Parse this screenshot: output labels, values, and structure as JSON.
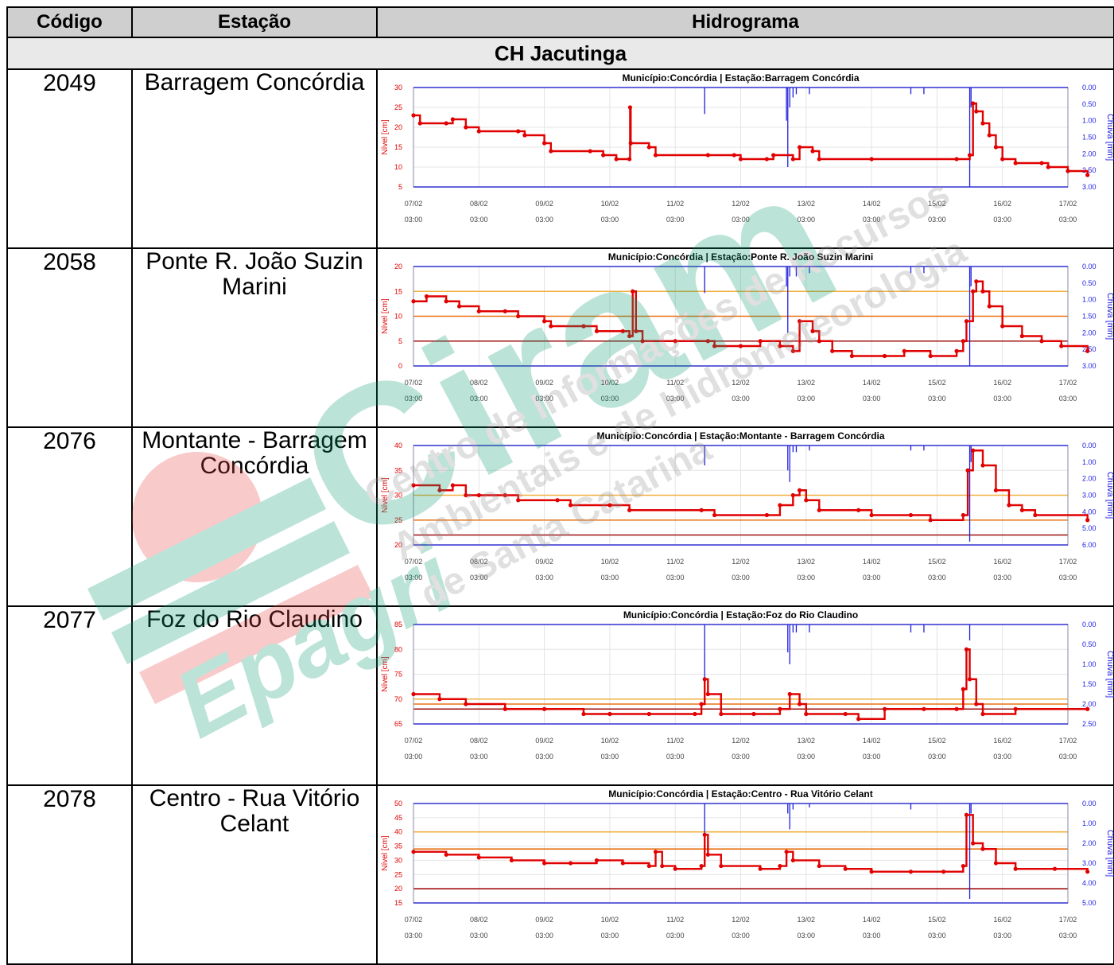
{
  "table": {
    "headers": [
      "Código",
      "Estação",
      "Hidrograma"
    ],
    "group_title": "CH Jacutinga",
    "rows": [
      {
        "code": "2049",
        "station": "Barragem Concórdia"
      },
      {
        "code": "2058",
        "station": "Ponte R. João Suzin Marini"
      },
      {
        "code": "2076",
        "station": "Montante - Barragem Concórdia"
      },
      {
        "code": "2077",
        "station": "Foz do Rio Claudino"
      },
      {
        "code": "2078",
        "station": "Centro - Rua Vitório Celant"
      }
    ]
  },
  "watermark": {
    "logo_text": "Epagri",
    "big_text": "Ciram",
    "line1": "Centro de Informações de Recursos",
    "line2": "Ambientais e de Hidrometeorologia",
    "line3": "de Santa Catarina"
  },
  "colors": {
    "level_series": "#e00000",
    "rain_series": "#2020e0",
    "threshold_light": "#f0b040",
    "threshold_mid": "#e87010",
    "threshold_dark": "#a01010",
    "watermark_green": "#0f9a72",
    "watermark_red": "#e64040"
  },
  "chart_data": [
    {
      "type": "line",
      "title": "Município:Concórdia | Estação:Barragem Concórdia",
      "ylabel": "Nível [cm]",
      "y2label": "Chuva [mm]",
      "x_ticks": [
        "07/02 03:00",
        "08/02 03:00",
        "09/02 03:00",
        "10/02 03:00",
        "11/02 03:00",
        "12/02 03:00",
        "13/02 03:00",
        "14/02 03:00",
        "15/02 03:00",
        "16/02 03:00",
        "17/02 03:00"
      ],
      "ylim": [
        5,
        30
      ],
      "y_ticks": [
        5,
        10,
        15,
        20,
        25,
        30
      ],
      "y2lim": [
        0,
        3
      ],
      "y2_ticks": [
        "0.00",
        "0.50",
        "1.00",
        "1.50",
        "2.00",
        "2.50",
        "3.00"
      ],
      "thresholds": [],
      "level": [
        [
          0,
          23
        ],
        [
          0.1,
          21
        ],
        [
          0.5,
          21
        ],
        [
          0.6,
          22
        ],
        [
          0.8,
          20
        ],
        [
          1,
          19
        ],
        [
          1.6,
          19
        ],
        [
          1.7,
          18
        ],
        [
          2,
          16
        ],
        [
          2.1,
          14
        ],
        [
          2.7,
          14
        ],
        [
          2.9,
          13
        ],
        [
          3.1,
          12
        ],
        [
          3.3,
          12
        ],
        [
          3.31,
          25
        ],
        [
          3.32,
          16
        ],
        [
          3.6,
          15
        ],
        [
          3.7,
          13
        ],
        [
          4.5,
          13
        ],
        [
          4.9,
          13
        ],
        [
          5,
          12
        ],
        [
          5.4,
          12
        ],
        [
          5.5,
          13
        ],
        [
          5.8,
          12
        ],
        [
          5.9,
          15
        ],
        [
          6.1,
          14
        ],
        [
          6.2,
          12
        ],
        [
          7,
          12
        ],
        [
          8.3,
          12
        ],
        [
          8.5,
          13
        ],
        [
          8.55,
          26
        ],
        [
          8.6,
          24
        ],
        [
          8.7,
          21
        ],
        [
          8.8,
          18
        ],
        [
          8.9,
          15
        ],
        [
          9,
          12
        ],
        [
          9.2,
          11
        ],
        [
          9.6,
          11
        ],
        [
          9.7,
          10
        ],
        [
          10,
          9
        ],
        [
          10.3,
          8
        ]
      ],
      "rain": [
        [
          4.45,
          0.8
        ],
        [
          5.7,
          1.0
        ],
        [
          5.72,
          2.4
        ],
        [
          5.75,
          0.6
        ],
        [
          5.8,
          0.3
        ],
        [
          5.85,
          0.2
        ],
        [
          6.05,
          0.2
        ],
        [
          7.6,
          0.2
        ],
        [
          7.8,
          0.2
        ],
        [
          8.5,
          3.0
        ],
        [
          8.52,
          0.6
        ]
      ]
    },
    {
      "type": "line",
      "title": "Município:Concórdia | Estação:Ponte R. João Suzin Marini",
      "ylabel": "Nível [cm]",
      "y2label": "Chuva [mm]",
      "x_ticks": [
        "07/02 03:00",
        "08/02 03:00",
        "09/02 03:00",
        "10/02 03:00",
        "11/02 03:00",
        "12/02 03:00",
        "13/02 03:00",
        "14/02 03:00",
        "15/02 03:00",
        "16/02 03:00",
        "17/02 03:00"
      ],
      "ylim": [
        0,
        20
      ],
      "y_ticks": [
        0,
        5,
        10,
        15,
        20
      ],
      "y2lim": [
        0,
        3
      ],
      "y2_ticks": [
        "0.00",
        "0.50",
        "1.00",
        "1.50",
        "2.00",
        "2.50",
        "3.00"
      ],
      "thresholds": [
        {
          "value": 15,
          "color": "light"
        },
        {
          "value": 10,
          "color": "mid"
        },
        {
          "value": 5,
          "color": "dark"
        }
      ],
      "level": [
        [
          0,
          13
        ],
        [
          0.2,
          14
        ],
        [
          0.5,
          13
        ],
        [
          0.7,
          12
        ],
        [
          1,
          11
        ],
        [
          1.4,
          11
        ],
        [
          1.6,
          10
        ],
        [
          2,
          9
        ],
        [
          2.1,
          8
        ],
        [
          2.6,
          8
        ],
        [
          2.8,
          7
        ],
        [
          3.2,
          7
        ],
        [
          3.3,
          6
        ],
        [
          3.35,
          15
        ],
        [
          3.4,
          7
        ],
        [
          3.5,
          5
        ],
        [
          4,
          5
        ],
        [
          4.5,
          5
        ],
        [
          4.6,
          4
        ],
        [
          5,
          4
        ],
        [
          5.3,
          5
        ],
        [
          5.6,
          4
        ],
        [
          5.8,
          3
        ],
        [
          5.9,
          9
        ],
        [
          6.1,
          7
        ],
        [
          6.2,
          5
        ],
        [
          6.4,
          3
        ],
        [
          6.7,
          2
        ],
        [
          7.2,
          2
        ],
        [
          7.5,
          3
        ],
        [
          7.9,
          2
        ],
        [
          8.3,
          3
        ],
        [
          8.4,
          5
        ],
        [
          8.45,
          9
        ],
        [
          8.55,
          15
        ],
        [
          8.6,
          17
        ],
        [
          8.7,
          15
        ],
        [
          8.8,
          12
        ],
        [
          9,
          8
        ],
        [
          9.3,
          6
        ],
        [
          9.6,
          5
        ],
        [
          9.9,
          4
        ],
        [
          10.3,
          3
        ]
      ],
      "rain": [
        [
          4.45,
          0.8
        ],
        [
          5.7,
          0.6
        ],
        [
          5.72,
          2.0
        ],
        [
          5.75,
          0.3
        ],
        [
          5.85,
          0.3
        ],
        [
          6.05,
          0.2
        ],
        [
          7.6,
          0.2
        ],
        [
          7.8,
          0.2
        ],
        [
          8.5,
          3.0
        ],
        [
          8.52,
          0.6
        ]
      ]
    },
    {
      "type": "line",
      "title": "Município:Concórdia | Estação:Montante - Barragem Concórdia",
      "ylabel": "Nível [cm]",
      "y2label": "Chuva [mm]",
      "x_ticks": [
        "07/02 03:00",
        "08/02 03:00",
        "09/02 03:00",
        "10/02 03:00",
        "11/02 03:00",
        "12/02 03:00",
        "13/02 03:00",
        "14/02 03:00",
        "15/02 03:00",
        "16/02 03:00",
        "17/02 03:00"
      ],
      "ylim": [
        20,
        40
      ],
      "y_ticks": [
        20,
        25,
        30,
        35,
        40
      ],
      "y2lim": [
        0,
        6
      ],
      "y2_ticks": [
        "0.00",
        "1.00",
        "2.00",
        "3.00",
        "4.00",
        "5.00",
        "6.00"
      ],
      "thresholds": [
        {
          "value": 30,
          "color": "light"
        },
        {
          "value": 25,
          "color": "mid"
        },
        {
          "value": 22,
          "color": "dark"
        }
      ],
      "level": [
        [
          0,
          32
        ],
        [
          0.4,
          31
        ],
        [
          0.6,
          32
        ],
        [
          0.8,
          30
        ],
        [
          1,
          30
        ],
        [
          1.4,
          30
        ],
        [
          1.6,
          29
        ],
        [
          2.2,
          29
        ],
        [
          2.4,
          28
        ],
        [
          3,
          28
        ],
        [
          3.3,
          27
        ],
        [
          4.4,
          27
        ],
        [
          4.6,
          26
        ],
        [
          5.4,
          26
        ],
        [
          5.6,
          28
        ],
        [
          5.8,
          30
        ],
        [
          5.9,
          31
        ],
        [
          6,
          29
        ],
        [
          6.2,
          27
        ],
        [
          6.8,
          27
        ],
        [
          7,
          26
        ],
        [
          7.6,
          26
        ],
        [
          7.9,
          25
        ],
        [
          8.4,
          26
        ],
        [
          8.47,
          35
        ],
        [
          8.55,
          39
        ],
        [
          8.7,
          36
        ],
        [
          8.9,
          31
        ],
        [
          9.1,
          28
        ],
        [
          9.3,
          27
        ],
        [
          9.5,
          26
        ],
        [
          10.3,
          25
        ]
      ],
      "rain": [
        [
          4.45,
          1.2
        ],
        [
          5.72,
          1.5
        ],
        [
          5.75,
          2.2
        ],
        [
          5.8,
          0.4
        ],
        [
          5.85,
          0.4
        ],
        [
          6.05,
          0.3
        ],
        [
          7.6,
          0.3
        ],
        [
          7.8,
          0.3
        ],
        [
          8.5,
          5.8
        ],
        [
          8.52,
          1.0
        ]
      ]
    },
    {
      "type": "line",
      "title": "Município:Concórdia | Estação:Foz do Rio Claudino",
      "ylabel": "Nível [cm]",
      "y2label": "Chuva [mm]",
      "x_ticks": [
        "07/02 03:00",
        "08/02 03:00",
        "09/02 03:00",
        "10/02 03:00",
        "11/02 03:00",
        "12/02 03:00",
        "13/02 03:00",
        "14/02 03:00",
        "15/02 03:00",
        "16/02 03:00",
        "17/02 03:00"
      ],
      "ylim": [
        65,
        85
      ],
      "y_ticks": [
        65,
        70,
        75,
        80,
        85
      ],
      "y2lim": [
        0,
        2.5
      ],
      "y2_ticks": [
        "0.00",
        "0.50",
        "1.00",
        "1.50",
        "2.00",
        "2.50"
      ],
      "thresholds": [
        {
          "value": 70,
          "color": "light"
        },
        {
          "value": 69,
          "color": "mid"
        },
        {
          "value": 68,
          "color": "dark"
        }
      ],
      "level": [
        [
          0,
          71
        ],
        [
          0.4,
          70
        ],
        [
          0.8,
          69
        ],
        [
          1.4,
          68
        ],
        [
          2,
          68
        ],
        [
          2.6,
          67
        ],
        [
          3,
          67
        ],
        [
          3.6,
          67
        ],
        [
          4.3,
          67
        ],
        [
          4.4,
          69
        ],
        [
          4.45,
          74
        ],
        [
          4.5,
          71
        ],
        [
          4.7,
          67
        ],
        [
          5.2,
          67
        ],
        [
          5.6,
          68
        ],
        [
          5.75,
          71
        ],
        [
          5.9,
          69
        ],
        [
          6,
          67
        ],
        [
          6.6,
          67
        ],
        [
          6.8,
          66
        ],
        [
          7.2,
          68
        ],
        [
          7.8,
          68
        ],
        [
          8.3,
          68
        ],
        [
          8.4,
          72
        ],
        [
          8.45,
          80
        ],
        [
          8.5,
          74
        ],
        [
          8.6,
          69
        ],
        [
          8.7,
          67
        ],
        [
          9.2,
          68
        ],
        [
          10.3,
          68
        ]
      ],
      "rain": [
        [
          4.45,
          1.5
        ],
        [
          5.72,
          0.7
        ],
        [
          5.75,
          1.0
        ],
        [
          5.8,
          0.2
        ],
        [
          5.85,
          0.2
        ],
        [
          6.05,
          0.2
        ],
        [
          7.6,
          0.2
        ],
        [
          7.8,
          0.2
        ],
        [
          8.5,
          0.4
        ]
      ]
    },
    {
      "type": "line",
      "title": "Município:Concórdia | Estação:Centro - Rua Vitório Celant",
      "ylabel": "Nível [cm]",
      "y2label": "Chuva [mm]",
      "x_ticks": [
        "07/02 03:00",
        "08/02 03:00",
        "09/02 03:00",
        "10/02 03:00",
        "11/02 03:00",
        "12/02 03:00",
        "13/02 03:00",
        "14/02 03:00",
        "15/02 03:00",
        "16/02 03:00",
        "17/02 03:00"
      ],
      "ylim": [
        15,
        50
      ],
      "y_ticks": [
        15,
        20,
        25,
        30,
        35,
        40,
        45,
        50
      ],
      "y2lim": [
        0,
        5
      ],
      "y2_ticks": [
        "0.00",
        "1.00",
        "2.00",
        "3.00",
        "4.00",
        "5.00"
      ],
      "thresholds": [
        {
          "value": 40,
          "color": "light"
        },
        {
          "value": 34,
          "color": "mid"
        },
        {
          "value": 20,
          "color": "dark"
        }
      ],
      "level": [
        [
          0,
          33
        ],
        [
          0.5,
          32
        ],
        [
          1,
          31
        ],
        [
          1.5,
          30
        ],
        [
          2,
          29
        ],
        [
          2.4,
          29
        ],
        [
          2.8,
          30
        ],
        [
          3.2,
          29
        ],
        [
          3.6,
          28
        ],
        [
          3.7,
          33
        ],
        [
          3.8,
          28
        ],
        [
          4,
          27
        ],
        [
          4.4,
          28
        ],
        [
          4.45,
          39
        ],
        [
          4.5,
          32
        ],
        [
          4.7,
          28
        ],
        [
          5.3,
          27
        ],
        [
          5.6,
          28
        ],
        [
          5.7,
          33
        ],
        [
          5.8,
          30
        ],
        [
          6.2,
          28
        ],
        [
          6.6,
          27
        ],
        [
          7,
          26
        ],
        [
          7.6,
          26
        ],
        [
          8.1,
          26
        ],
        [
          8.4,
          28
        ],
        [
          8.45,
          46
        ],
        [
          8.55,
          36
        ],
        [
          8.7,
          34
        ],
        [
          8.9,
          29
        ],
        [
          9.2,
          27
        ],
        [
          9.8,
          27
        ],
        [
          10.3,
          26
        ]
      ],
      "rain": [
        [
          4.45,
          1.5
        ],
        [
          5.72,
          0.5
        ],
        [
          5.75,
          1.3
        ],
        [
          5.8,
          0.3
        ],
        [
          6.05,
          0.2
        ],
        [
          7.6,
          0.3
        ],
        [
          8.5,
          4.8
        ],
        [
          8.52,
          0.5
        ]
      ]
    }
  ]
}
